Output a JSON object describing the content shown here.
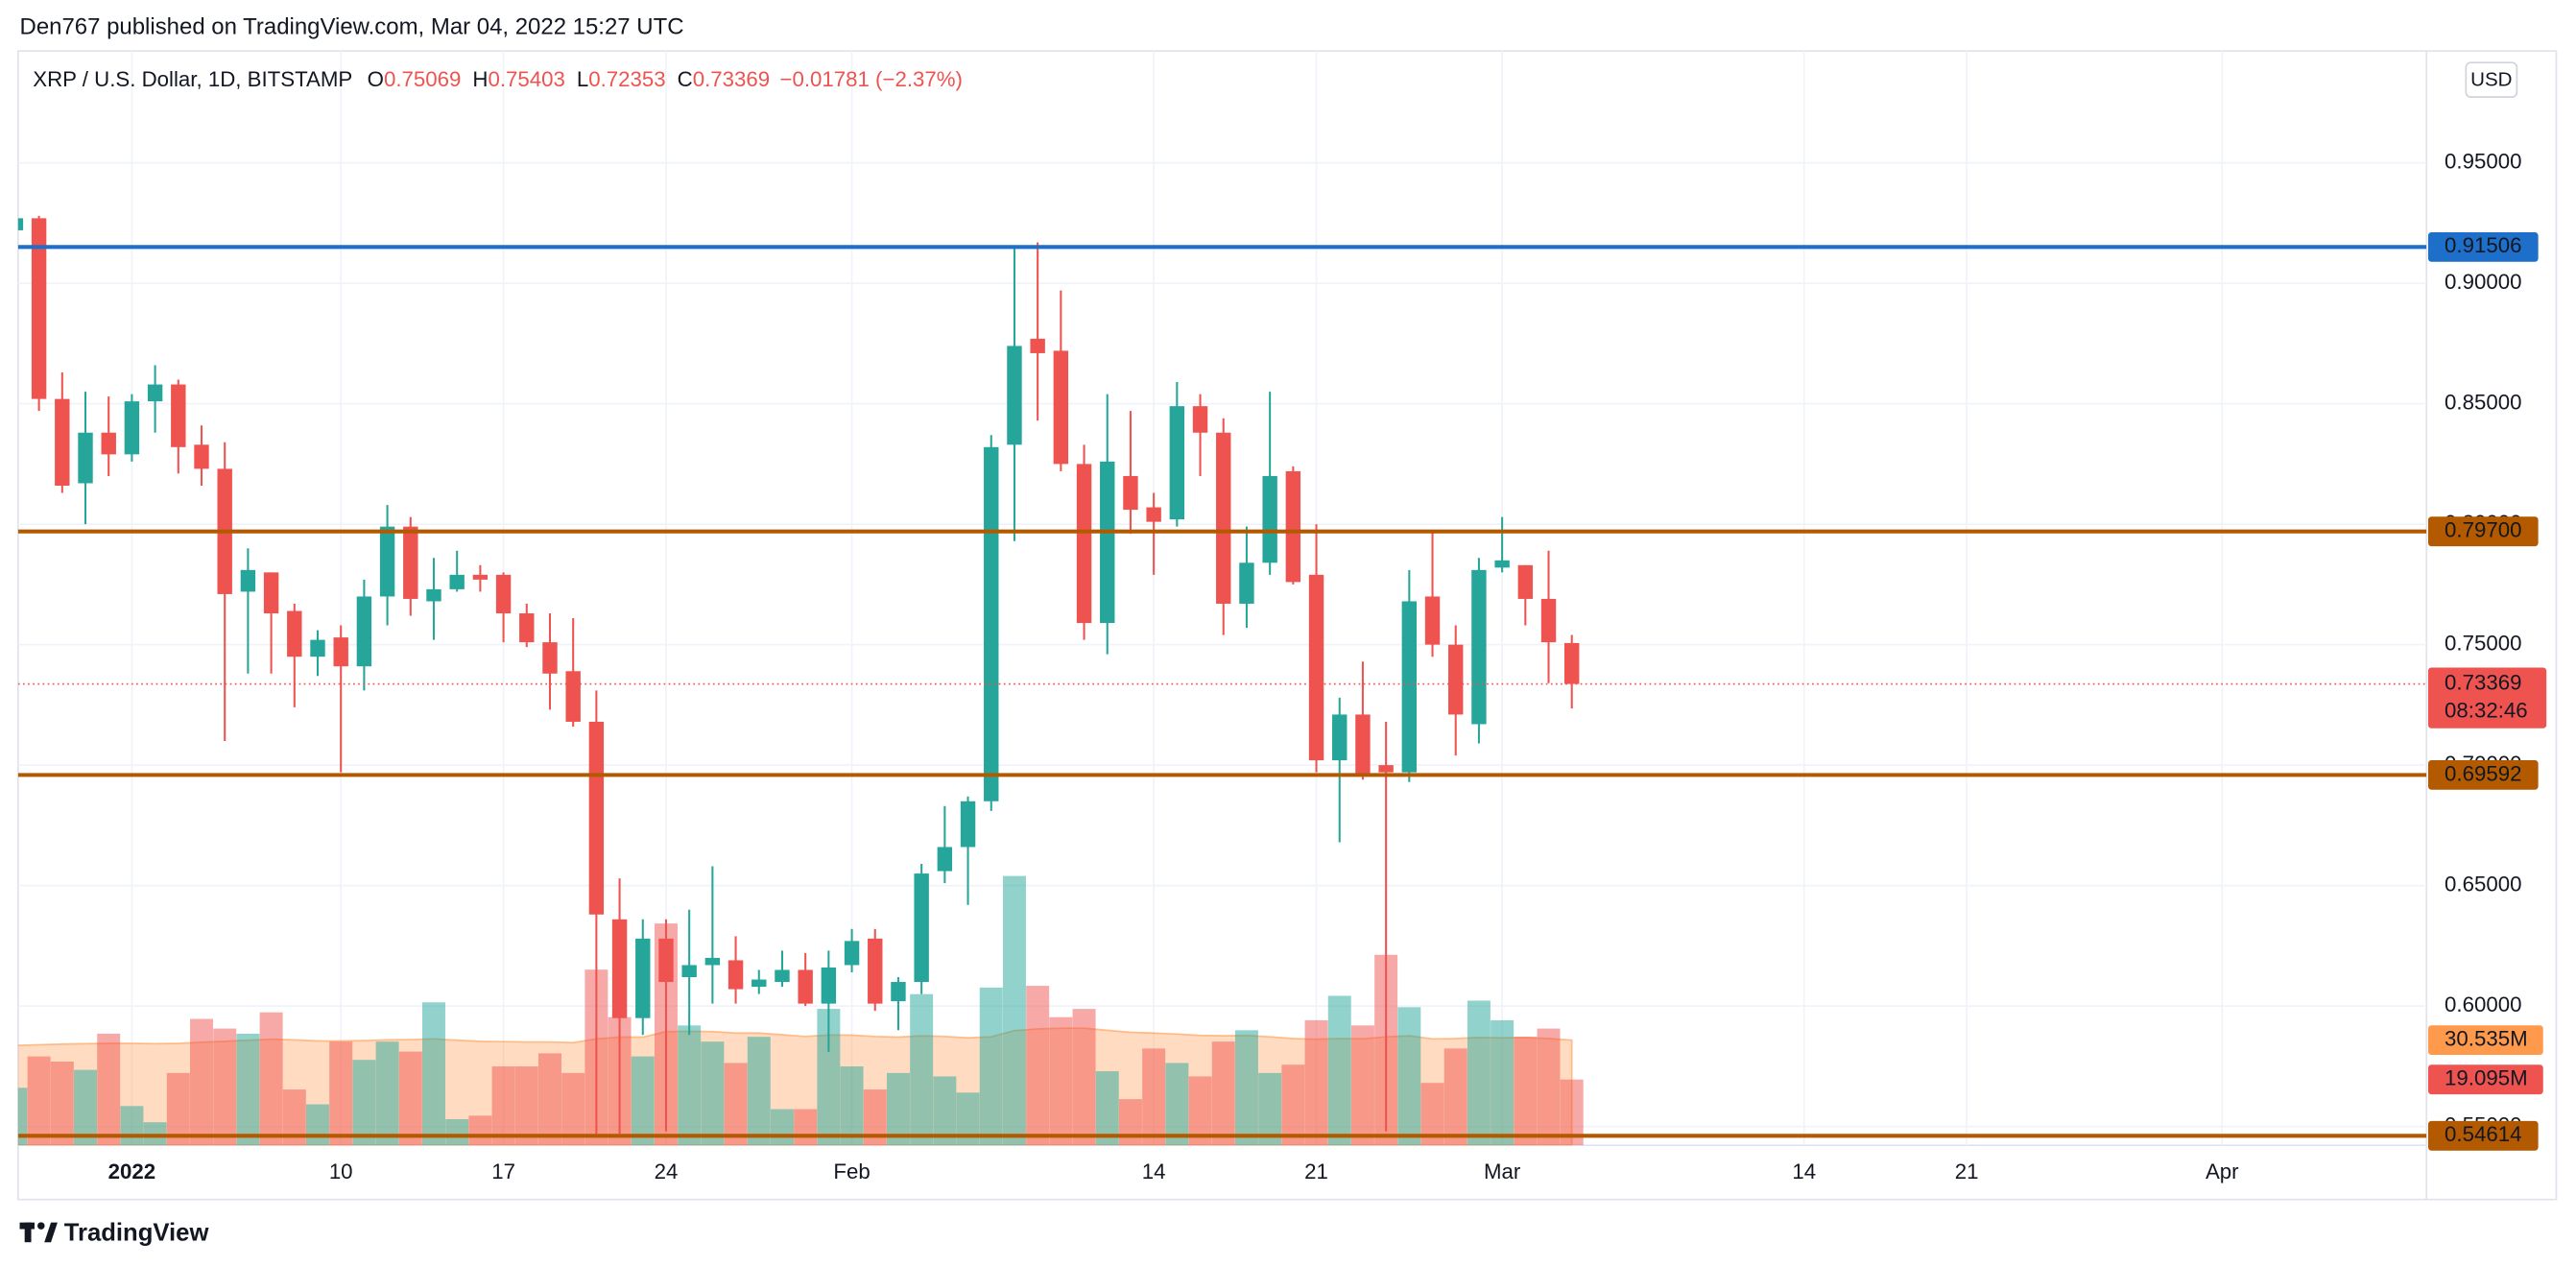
{
  "chart_data": {
    "type": "candlestick",
    "publisher": "Den767 published on TradingView.com, Mar 04, 2022 15:27 UTC",
    "title": "XRP / U.S. Dollar, 1D, BITSTAMP",
    "ohlc_labels": [
      "O",
      "H",
      "L",
      "C"
    ],
    "change": "−0.01781 (−2.37%)",
    "currency": "USD",
    "brand": "TradingView",
    "countdown": "08:32:46",
    "up_color": "#26a69a",
    "down_color": "#ef5350",
    "grid": true,
    "xlim": [
      0.1,
      103.8
    ],
    "xticks": [
      {
        "value": 5,
        "label": "2022"
      },
      {
        "value": 14,
        "label": "10"
      },
      {
        "value": 21,
        "label": "17"
      },
      {
        "value": 28,
        "label": "24"
      },
      {
        "value": 36,
        "label": "Feb"
      },
      {
        "value": 49,
        "label": "14"
      },
      {
        "value": 56,
        "label": "21"
      },
      {
        "value": 64,
        "label": "Mar"
      },
      {
        "value": 77,
        "label": "14"
      },
      {
        "value": 84,
        "label": "21"
      },
      {
        "value": 95,
        "label": "Apr"
      }
    ],
    "ylim": [
      0.5422,
      0.9964
    ],
    "yticks": [
      {
        "value": 0.55,
        "label": "0.55000"
      },
      {
        "value": 0.6,
        "label": "0.60000"
      },
      {
        "value": 0.65,
        "label": "0.65000"
      },
      {
        "value": 0.7,
        "label": "0.70000"
      },
      {
        "value": 0.75,
        "label": "0.75000"
      },
      {
        "value": 0.8,
        "label": "0.80000"
      },
      {
        "value": 0.85,
        "label": "0.85000"
      },
      {
        "value": 0.9,
        "label": "0.90000"
      },
      {
        "value": 0.95,
        "label": "0.95000"
      }
    ],
    "price_lines": [
      {
        "value": 0.91506,
        "label": "0.91506",
        "color": "#1e6fc9"
      },
      {
        "value": 0.797,
        "label": "0.79700",
        "color": "#b35a00"
      },
      {
        "value": 0.69592,
        "label": "0.69592",
        "color": "#b35a00"
      },
      {
        "value": 0.54614,
        "label": "0.54614",
        "color": "#b35a00"
      }
    ],
    "candles": {
      "open": [
        0.922,
        0.927,
        0.852,
        0.817,
        0.838,
        0.829,
        0.851,
        0.858,
        0.833,
        0.823,
        0.772,
        0.78,
        0.764,
        0.745,
        0.753,
        0.741,
        0.77,
        0.799,
        0.768,
        0.773,
        0.779,
        0.779,
        0.763,
        0.751,
        0.739,
        0.718,
        0.636,
        0.595,
        0.628,
        0.612,
        0.617,
        0.619,
        0.608,
        0.61,
        0.615,
        0.601,
        0.617,
        0.628,
        0.602,
        0.61,
        0.656,
        0.666,
        0.685,
        0.833,
        0.877,
        0.872,
        0.825,
        0.759,
        0.82,
        0.807,
        0.802,
        0.849,
        0.838,
        0.767,
        0.784,
        0.822,
        0.779,
        0.702,
        0.721,
        0.7,
        0.697,
        0.77,
        0.75,
        0.717,
        0.782,
        0.783,
        0.769,
        0.75069
      ],
      "high": [
        0.93,
        0.928,
        0.863,
        0.855,
        0.853,
        0.854,
        0.866,
        0.86,
        0.841,
        0.834,
        0.79,
        0.78,
        0.767,
        0.756,
        0.758,
        0.777,
        0.808,
        0.803,
        0.786,
        0.789,
        0.783,
        0.78,
        0.767,
        0.763,
        0.761,
        0.731,
        0.653,
        0.636,
        0.636,
        0.64,
        0.658,
        0.629,
        0.615,
        0.623,
        0.622,
        0.623,
        0.632,
        0.632,
        0.612,
        0.659,
        0.683,
        0.687,
        0.837,
        0.915,
        0.917,
        0.897,
        0.833,
        0.854,
        0.847,
        0.813,
        0.859,
        0.854,
        0.844,
        0.799,
        0.855,
        0.824,
        0.8,
        0.728,
        0.743,
        0.718,
        0.781,
        0.797,
        0.758,
        0.786,
        0.803,
        0.783,
        0.789,
        0.75403
      ],
      "low": [
        0.915,
        0.847,
        0.813,
        0.8,
        0.82,
        0.826,
        0.838,
        0.821,
        0.816,
        0.71,
        0.738,
        0.738,
        0.724,
        0.737,
        0.697,
        0.731,
        0.758,
        0.762,
        0.752,
        0.772,
        0.772,
        0.751,
        0.749,
        0.723,
        0.716,
        0.547,
        0.547,
        0.588,
        0.548,
        0.588,
        0.601,
        0.601,
        0.605,
        0.608,
        0.6,
        0.581,
        0.614,
        0.598,
        0.59,
        0.605,
        0.651,
        0.642,
        0.681,
        0.793,
        0.843,
        0.822,
        0.752,
        0.746,
        0.796,
        0.779,
        0.799,
        0.82,
        0.754,
        0.757,
        0.779,
        0.775,
        0.697,
        0.668,
        0.694,
        0.548,
        0.693,
        0.745,
        0.704,
        0.709,
        0.78,
        0.758,
        0.734,
        0.72353
      ],
      "close": [
        0.927,
        0.852,
        0.816,
        0.838,
        0.829,
        0.851,
        0.858,
        0.832,
        0.823,
        0.771,
        0.781,
        0.763,
        0.745,
        0.752,
        0.741,
        0.77,
        0.799,
        0.769,
        0.773,
        0.779,
        0.777,
        0.763,
        0.751,
        0.738,
        0.718,
        0.638,
        0.595,
        0.628,
        0.61,
        0.617,
        0.62,
        0.607,
        0.611,
        0.615,
        0.601,
        0.616,
        0.627,
        0.601,
        0.61,
        0.655,
        0.666,
        0.685,
        0.832,
        0.874,
        0.871,
        0.825,
        0.759,
        0.826,
        0.806,
        0.801,
        0.849,
        0.838,
        0.767,
        0.784,
        0.82,
        0.776,
        0.702,
        0.721,
        0.696,
        0.697,
        0.768,
        0.75,
        0.721,
        0.781,
        0.785,
        0.769,
        0.751,
        0.73369
      ]
    },
    "volume": {
      "ylim": [
        0,
        317.7
      ],
      "last_label": "19.095M",
      "values": [
        16.7,
        25.8,
        24.3,
        21.9,
        32.4,
        11.4,
        6.7,
        21.0,
        36.7,
        33.9,
        32.4,
        38.6,
        16.2,
        11.9,
        30.1,
        24.8,
        30.1,
        27.2,
        41.5,
        7.6,
        8.6,
        22.9,
        22.9,
        26.7,
        21.0,
        51.0,
        37.2,
        25.8,
        64.4,
        34.8,
        30.1,
        23.9,
        31.5,
        10.5,
        10.5,
        39.6,
        22.9,
        16.2,
        21.0,
        43.9,
        20.0,
        15.3,
        45.8,
        78.2,
        46.3,
        37.2,
        39.6,
        21.5,
        13.4,
        28.1,
        23.9,
        20.0,
        30.1,
        33.4,
        21.0,
        23.4,
        36.3,
        43.4,
        34.8,
        55.3,
        40.1,
        18.1,
        28.1,
        42.0,
        36.3,
        31.5,
        33.9,
        19.095
      ]
    },
    "volume_ma": {
      "color": "#ff9a4d",
      "last_label": "30.535M",
      "values": [
        29.0,
        29.2,
        29.4,
        29.5,
        29.6,
        29.6,
        29.5,
        29.6,
        29.9,
        30.2,
        30.5,
        30.8,
        30.6,
        30.3,
        30.3,
        30.4,
        30.6,
        30.7,
        30.9,
        30.5,
        30.2,
        30.1,
        30.0,
        30.0,
        29.8,
        30.9,
        31.4,
        31.4,
        33.0,
        33.1,
        33.0,
        32.6,
        32.6,
        32.1,
        31.6,
        32.0,
        32.0,
        31.6,
        31.4,
        31.8,
        31.6,
        31.2,
        31.5,
        33.3,
        33.8,
        34.0,
        34.0,
        33.4,
        32.8,
        32.6,
        32.3,
        31.9,
        31.8,
        31.9,
        31.5,
        31.0,
        30.8,
        31.0,
        30.9,
        31.5,
        31.8,
        30.9,
        31.0,
        31.3,
        31.2,
        31.3,
        31.0,
        30.535
      ]
    }
  }
}
